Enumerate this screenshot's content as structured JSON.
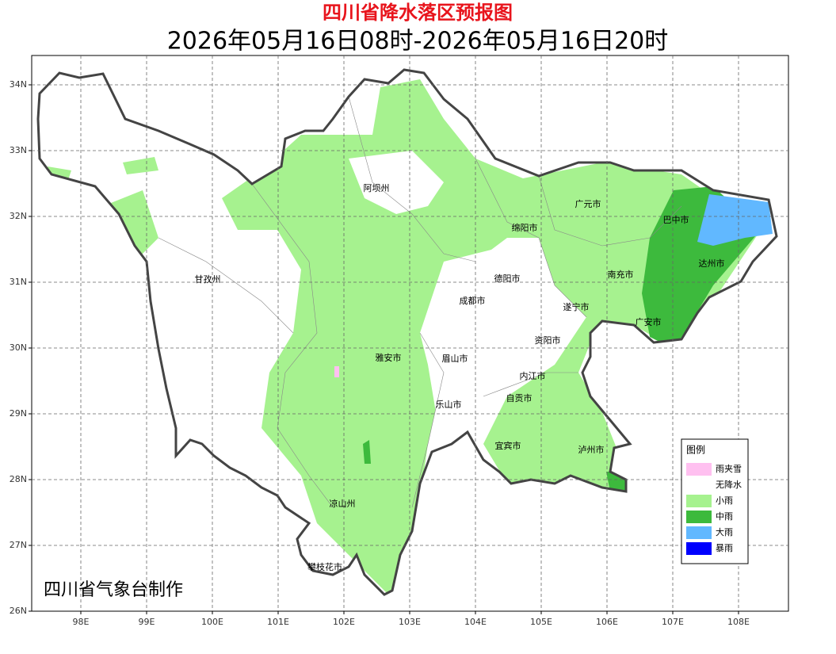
{
  "header": {
    "title": "四川省降水落区预报图",
    "subtitle": "2026年05月16日08时-2026年05月16日20时"
  },
  "axes": {
    "lat_labels": [
      "34N",
      "33N",
      "32N",
      "31N",
      "30N",
      "29N",
      "28N",
      "27N",
      "26N"
    ],
    "lon_labels": [
      "98E",
      "99E",
      "100E",
      "101E",
      "102E",
      "103E",
      "104E",
      "105E",
      "106E",
      "107E",
      "108E"
    ]
  },
  "cities": [
    "阿坝州",
    "绵阳市",
    "广元市",
    "巴中市",
    "达州市",
    "甘孜州",
    "德阳市",
    "南充市",
    "成都市",
    "遂宁市",
    "广安市",
    "资阳市",
    "雅安市",
    "眉山市",
    "内江市",
    "自贡市",
    "乐山市",
    "宜宾市",
    "泸州市",
    "凉山州",
    "攀枝花市"
  ],
  "legend": {
    "title": "图例",
    "items": [
      {
        "label": "雨夹雪",
        "color": "#ffc0f0"
      },
      {
        "label": "无降水",
        "color": "#ffffff"
      },
      {
        "label": "小雨",
        "color": "#a6f28f"
      },
      {
        "label": "中雨",
        "color": "#3dba3d"
      },
      {
        "label": "大雨",
        "color": "#61b8ff"
      },
      {
        "label": "暴雨",
        "color": "#0000fe"
      }
    ]
  },
  "credit": "四川省气象台制作"
}
